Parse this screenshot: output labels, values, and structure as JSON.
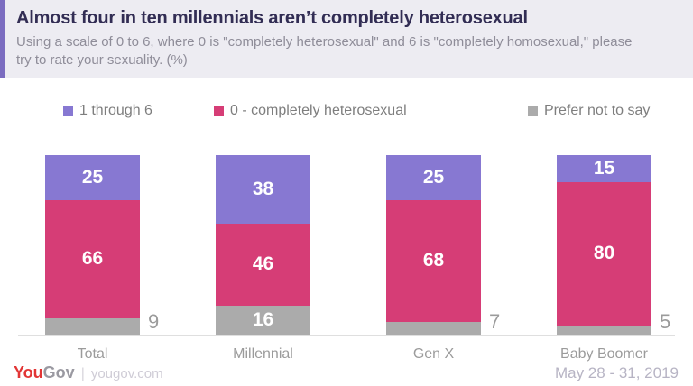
{
  "chart_data": {
    "type": "bar",
    "stacked": true,
    "orientation": "vertical",
    "title": "Almost four in ten millennials aren’t completely heterosexual",
    "subtitle": "Using a scale of 0 to 6, where 0 is \"completely heterosexual\" and 6 is \"completely homosexual,\" please try to rate your sexuality. (%)",
    "unit": "%",
    "categories": [
      "Total",
      "Millennial",
      "Gen X",
      "Baby Boomer"
    ],
    "series": [
      {
        "name": "1 through 6",
        "color": "#8778d2",
        "values": [
          25,
          38,
          25,
          15
        ]
      },
      {
        "name": "0 - completely heterosexual",
        "color": "#d63d76",
        "values": [
          66,
          46,
          68,
          80
        ]
      },
      {
        "name": "Prefer not to say",
        "color": "#ababab",
        "values": [
          9,
          16,
          7,
          5
        ]
      }
    ],
    "ylim": [
      0,
      100
    ],
    "grid": false,
    "legend_position": "top",
    "value_labels": "inside segments; segments under 10 labeled outside right of bar in gray",
    "outside_label_threshold": 10
  },
  "colors": {
    "header_bg": "#edecf2",
    "header_accent": "#7b6cc0",
    "title_text": "#322d54",
    "subtitle_text": "#8f8d99",
    "axis_line": "#dfdfdf",
    "category_label": "#9b9b9b",
    "brand_red": "#e23535",
    "brand_gray": "#9a99a1",
    "date_text": "#b7b4c4"
  },
  "footer": {
    "brand_you": "You",
    "brand_gov": "Gov",
    "brand_divider": "|",
    "brand_site": "yougov.com",
    "date_range": "May 28 - 31, 2019"
  }
}
